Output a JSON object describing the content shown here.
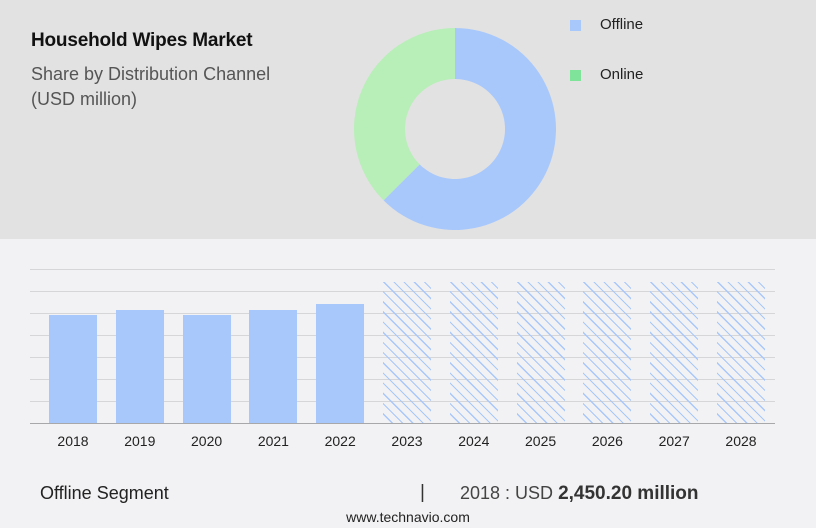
{
  "header": {
    "title": "Household Wipes Market",
    "subtitle_line1": "Share by Distribution Channel",
    "subtitle_line2": "(USD million)"
  },
  "legend": {
    "items": [
      {
        "label": "Offline",
        "color": "#a8c8fc"
      },
      {
        "label": "Online",
        "color": "#7fe39a"
      }
    ]
  },
  "colors": {
    "offline": "#a8c8fc",
    "online_donut": "#b8eeb8",
    "online_legend": "#7fe39a",
    "top_panel": "#e2e2e2",
    "background": "#f2f2f4"
  },
  "footer": {
    "segment": "Offline Segment",
    "divider": "|",
    "year_prefix": "2018 : USD ",
    "value": "2,450.20 million",
    "website": "www.technavio.com"
  },
  "chart_data": [
    {
      "type": "pie",
      "title": "Household Wipes Market - Share by Distribution Channel (USD million)",
      "style": "donut",
      "categories": [
        "Offline",
        "Online"
      ],
      "values": [
        62.5,
        37.5
      ],
      "unit": "% share (estimated)",
      "legend_position": "right"
    },
    {
      "type": "bar",
      "title": "Offline Segment",
      "categories": [
        "2018",
        "2019",
        "2020",
        "2021",
        "2022",
        "2023",
        "2024",
        "2025",
        "2026",
        "2027",
        "2028"
      ],
      "series": [
        {
          "name": "Offline (actual)",
          "values": [
            2450.2,
            2560,
            2450,
            2560,
            2700,
            null,
            null,
            null,
            null,
            null,
            null
          ]
        },
        {
          "name": "Offline (forecast, hatched placeholder)",
          "values": [
            null,
            null,
            null,
            null,
            null,
            3200,
            3200,
            3200,
            3200,
            3200,
            3200
          ]
        }
      ],
      "xlabel": "",
      "ylabel": "USD million",
      "ylim": [
        0,
        3500
      ],
      "grid": true,
      "gridline_step": 500,
      "annotation": "2018 : USD 2,450.20 million"
    }
  ],
  "bars": {
    "years": [
      "2018",
      "2019",
      "2020",
      "2021",
      "2022",
      "2023",
      "2024",
      "2025",
      "2026",
      "2027",
      "2028"
    ],
    "values": [
      2450.2,
      2560,
      2450,
      2560,
      2700,
      3200,
      3200,
      3200,
      3200,
      3200,
      3200
    ],
    "forecast": [
      false,
      false,
      false,
      false,
      false,
      true,
      true,
      true,
      true,
      true,
      true
    ]
  }
}
